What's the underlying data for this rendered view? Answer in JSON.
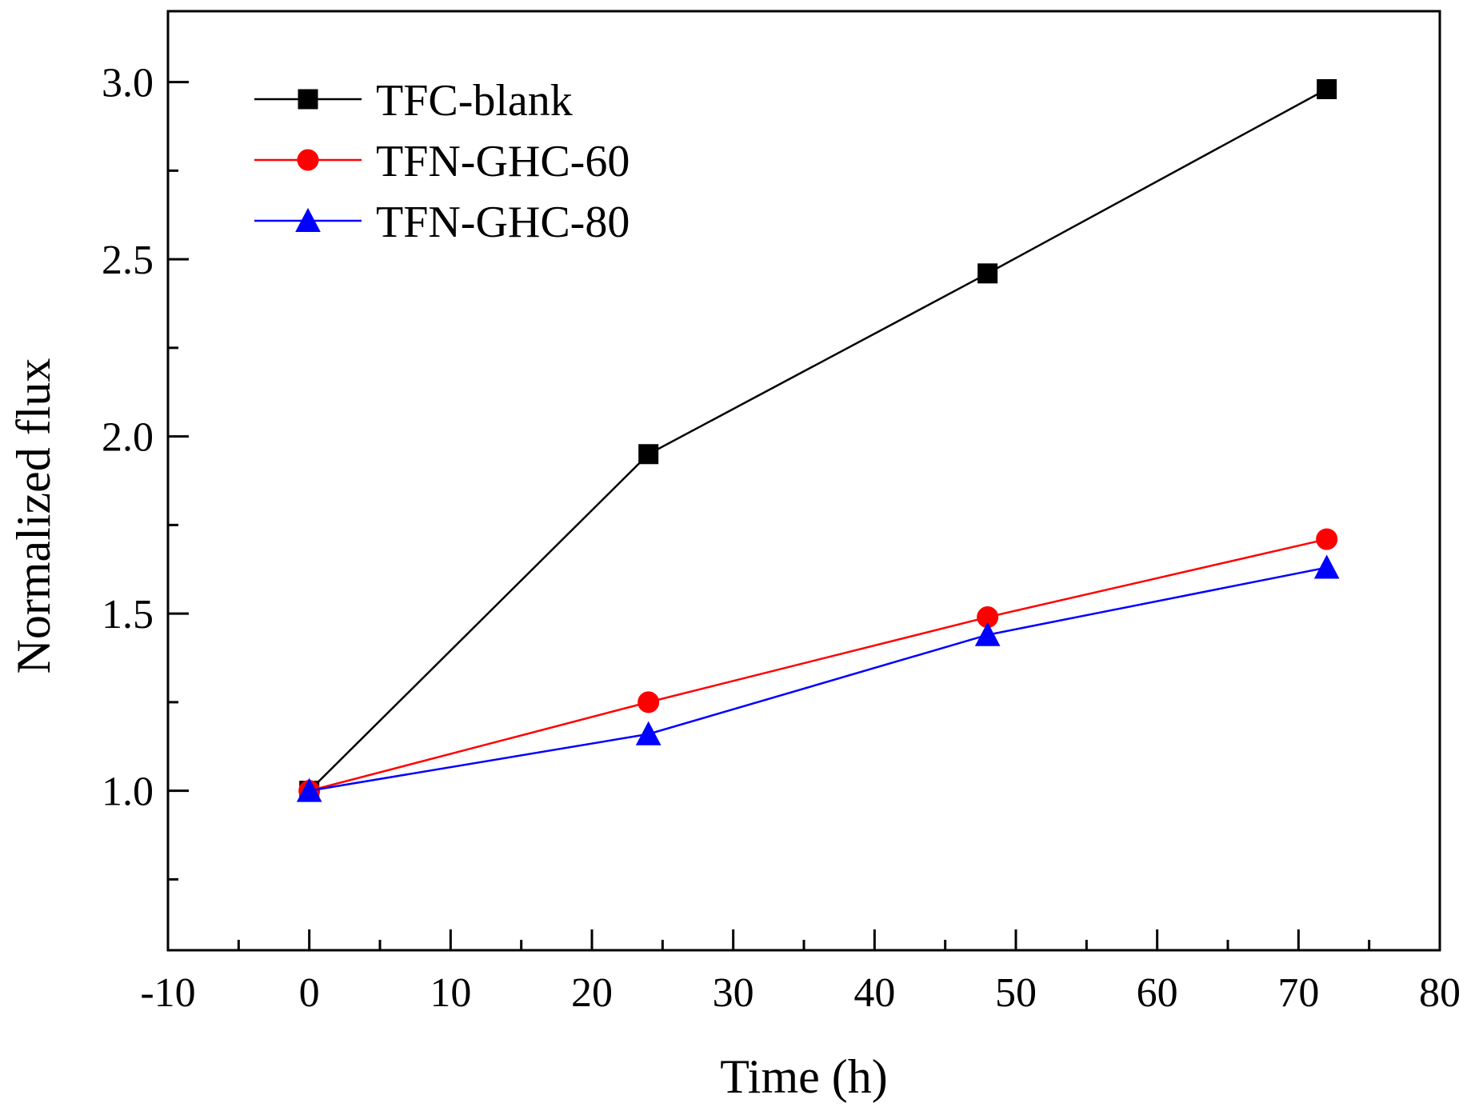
{
  "chart_data": {
    "type": "line",
    "title": "",
    "xlabel": "Time (h)",
    "ylabel": "Normalized flux",
    "xlim": [
      -10,
      80
    ],
    "ylim": [
      0.55,
      3.2
    ],
    "xticks": [
      -10,
      0,
      10,
      20,
      30,
      40,
      50,
      60,
      70,
      80
    ],
    "xtick_labels": [
      "-10",
      "0",
      "10",
      "20",
      "30",
      "40",
      "50",
      "60",
      "70",
      "80"
    ],
    "yticks": [
      1.0,
      1.5,
      2.0,
      2.5,
      3.0
    ],
    "ytick_labels": [
      "1.0",
      "1.5",
      "2.0",
      "2.5",
      "3.0"
    ],
    "grid": false,
    "legend_position": "top-left",
    "series": [
      {
        "name": "TFC-blank",
        "color": "#000000",
        "marker": "square",
        "x": [
          0,
          24,
          48,
          72
        ],
        "values": [
          1.0,
          1.95,
          2.46,
          2.98
        ]
      },
      {
        "name": "TFN-GHC-60",
        "color": "#ff0000",
        "marker": "circle",
        "x": [
          0,
          24,
          48,
          72
        ],
        "values": [
          1.0,
          1.25,
          1.49,
          1.71
        ]
      },
      {
        "name": "TFN-GHC-80",
        "color": "#0000ff",
        "marker": "triangle",
        "x": [
          0,
          24,
          48,
          72
        ],
        "values": [
          1.0,
          1.16,
          1.44,
          1.63
        ]
      }
    ]
  }
}
